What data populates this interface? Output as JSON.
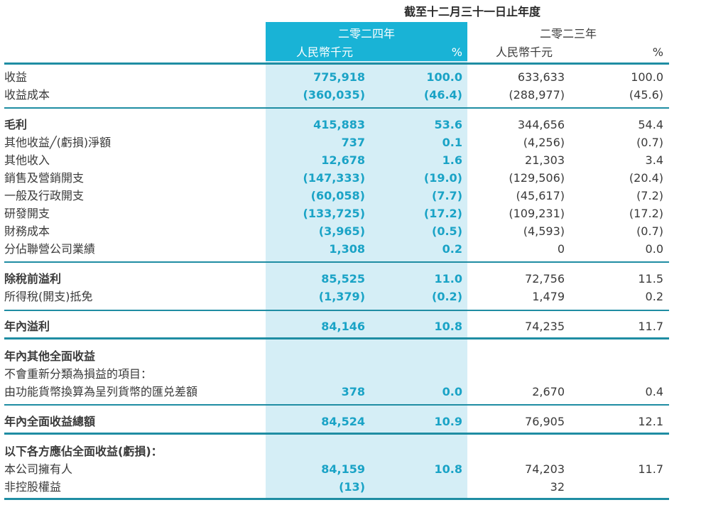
{
  "header": {
    "period": "截至十二月三十一日止年度",
    "y2024": "二零二四年",
    "y2023": "二零二三年",
    "unit": "人民幣千元",
    "pct": "%"
  },
  "rows": {
    "revenue": {
      "label": "收益",
      "a": "775,918",
      "b": "100.0",
      "c": "633,633",
      "d": "100.0"
    },
    "cost": {
      "label": "收益成本",
      "a": "(360,035)",
      "b": "(46.4)",
      "c": "(288,977)",
      "d": "(45.6)"
    },
    "gross": {
      "label": "毛利",
      "a": "415,883",
      "b": "53.6",
      "c": "344,656",
      "d": "54.4"
    },
    "other_gains": {
      "label": "其他收益╱(虧損)淨額",
      "a": "737",
      "b": "0.1",
      "c": "(4,256)",
      "d": "(0.7)"
    },
    "other_income": {
      "label": "其他收入",
      "a": "12,678",
      "b": "1.6",
      "c": "21,303",
      "d": "3.4"
    },
    "selling": {
      "label": "銷售及營銷開支",
      "a": "(147,333)",
      "b": "(19.0)",
      "c": "(129,506)",
      "d": "(20.4)"
    },
    "admin": {
      "label": "一般及行政開支",
      "a": "(60,058)",
      "b": "(7.7)",
      "c": "(45,617)",
      "d": "(7.2)"
    },
    "rnd": {
      "label": "研發開支",
      "a": "(133,725)",
      "b": "(17.2)",
      "c": "(109,231)",
      "d": "(17.2)"
    },
    "finance": {
      "label": "財務成本",
      "a": "(3,965)",
      "b": "(0.5)",
      "c": "(4,593)",
      "d": "(0.7)"
    },
    "associate": {
      "label": "分佔聯營公司業績",
      "a": "1,308",
      "b": "0.2",
      "c": "0",
      "d": "0.0"
    },
    "pbt": {
      "label": "除稅前溢利",
      "a": "85,525",
      "b": "11.0",
      "c": "72,756",
      "d": "11.5"
    },
    "tax": {
      "label": "所得稅(開支)抵免",
      "a": "(1,379)",
      "b": "(0.2)",
      "c": "1,479",
      "d": "0.2"
    },
    "profit": {
      "label": "年內溢利",
      "a": "84,146",
      "b": "10.8",
      "c": "74,235",
      "d": "11.7"
    },
    "oci_title": {
      "label": "年內其他全面收益"
    },
    "oci_sub": {
      "label": "不會重新分類為損益的項目："
    },
    "oci_fx": {
      "label": "由功能貨幣換算為呈列貨幣的匯兑差額",
      "a": "378",
      "b": "0.0",
      "c": "2,670",
      "d": "0.4"
    },
    "total_ci": {
      "label": "年內全面收益總額",
      "a": "84,524",
      "b": "10.9",
      "c": "76,905",
      "d": "12.1"
    },
    "attrib_title": {
      "label": "以下各方應佔全面收益(虧損)："
    },
    "owners": {
      "label": "本公司擁有人",
      "a": "84,159",
      "b": "10.8",
      "c": "74,203",
      "d": "11.7"
    },
    "nci": {
      "label": "非控股權益",
      "a": "(13)",
      "c": "32"
    }
  }
}
